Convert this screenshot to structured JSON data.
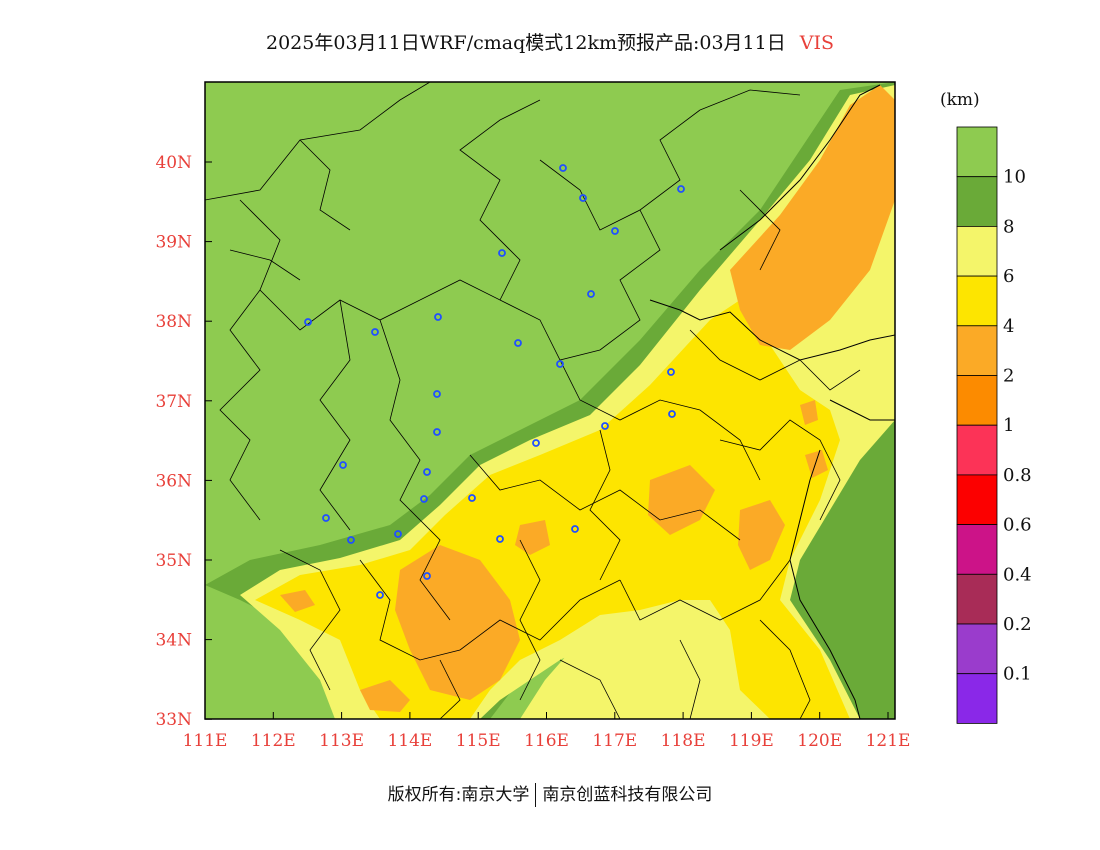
{
  "title": {
    "main": "2025年03月11日WRF/cmaq模式12km预报产品:03月11日",
    "variable": "VIS"
  },
  "unit": "(km)",
  "axes": {
    "lon_ticks": [
      "111E",
      "112E",
      "113E",
      "114E",
      "115E",
      "116E",
      "117E",
      "118E",
      "119E",
      "120E",
      "121E"
    ],
    "lat_ticks": [
      "40N",
      "39N",
      "38N",
      "37N",
      "36N",
      "35N",
      "34N",
      "33N"
    ]
  },
  "legend": {
    "labels": [
      "10",
      "8",
      "6",
      "4",
      "2",
      "1",
      "0.8",
      "0.6",
      "0.4",
      "0.2",
      "0.1"
    ],
    "colors": [
      "#8ecb50",
      "#6aaa38",
      "#f4f56a",
      "#fde500",
      "#fbaa26",
      "#fc8b00",
      "#fc3357",
      "#fc0000",
      "#cc1388",
      "#a82c57",
      "#9a3ccc",
      "#8a28e8"
    ]
  },
  "footer": {
    "left": "版权所有:南京大学",
    "right": "南京创蓝科技有限公司"
  },
  "colors": {
    "tick_text": "#e8403a",
    "station_marker": "#2050ff",
    "boundary": "#000000"
  }
}
